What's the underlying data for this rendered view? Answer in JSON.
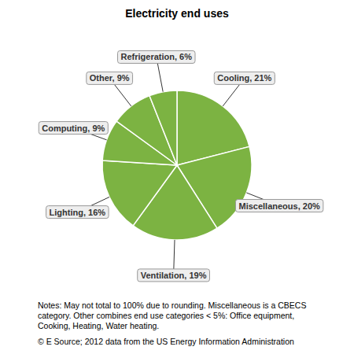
{
  "chart_data": {
    "type": "pie",
    "title": "Electricity end uses",
    "categories": [
      "Cooling",
      "Miscellaneous",
      "Ventilation",
      "Lighting",
      "Computing",
      "Other",
      "Refrigeration"
    ],
    "values": [
      21,
      20,
      19,
      16,
      9,
      9,
      6
    ],
    "value_labels": [
      "21%",
      "20%",
      "19%",
      "16%",
      "9%",
      "9%",
      "6%"
    ],
    "data_labels": true,
    "color": "#7cb342",
    "annotations": [
      "Notes: May not total to 100% due to rounding. Miscellaneous is a CBECS",
      "category. Other combines end use categories < 5%: Office equipment,",
      "Cooking, Heating, Water heating.",
      "© E Source; 2012 data from the US Energy Information Administration"
    ]
  }
}
